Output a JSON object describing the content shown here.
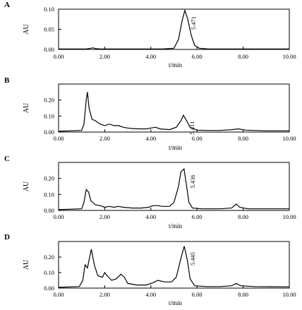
{
  "chart_data": [
    {
      "type": "line",
      "panel_label": "A",
      "xlabel": "t/min",
      "ylabel": "AU",
      "xlim": [
        0,
        10
      ],
      "ylim": [
        0,
        0.1
      ],
      "x_ticks": [
        "0.00",
        "2.00",
        "4.00",
        "6.00",
        "8.00",
        "10.00"
      ],
      "y_ticks": [
        "0.00",
        "0.05",
        "0.10"
      ],
      "series": [
        {
          "points": [
            [
              0,
              0.001
            ],
            [
              1.2,
              0.001
            ],
            [
              1.4,
              0.003
            ],
            [
              1.5,
              0.004
            ],
            [
              1.6,
              0.002
            ],
            [
              1.8,
              0.001
            ],
            [
              3.0,
              0.001
            ],
            [
              4.5,
              0.001
            ],
            [
              5.0,
              0.003
            ],
            [
              5.2,
              0.025
            ],
            [
              5.35,
              0.07
            ],
            [
              5.471,
              0.097
            ],
            [
              5.6,
              0.075
            ],
            [
              5.75,
              0.035
            ],
            [
              5.9,
              0.01
            ],
            [
              6.1,
              0.003
            ],
            [
              6.5,
              0.001
            ],
            [
              8.0,
              0.001
            ],
            [
              10.0,
              0.001
            ]
          ]
        }
      ],
      "annotations": [
        {
          "text": "5.471",
          "x": 5.471,
          "y": 0.097
        }
      ]
    },
    {
      "type": "line",
      "panel_label": "B",
      "xlabel": "t/min",
      "ylabel": "AU",
      "xlim": [
        0,
        10
      ],
      "ylim": [
        0,
        0.3
      ],
      "x_ticks": [
        "0.00",
        "2.00",
        "4.00",
        "6.00",
        "8.00",
        "10.00"
      ],
      "y_ticks": [
        "0.00",
        "0.10",
        "0.20"
      ],
      "series": [
        {
          "points": [
            [
              0,
              0.005
            ],
            [
              1.0,
              0.01
            ],
            [
              1.1,
              0.05
            ],
            [
              1.2,
              0.2
            ],
            [
              1.25,
              0.25
            ],
            [
              1.32,
              0.15
            ],
            [
              1.45,
              0.08
            ],
            [
              1.6,
              0.07
            ],
            [
              1.8,
              0.05
            ],
            [
              2.0,
              0.04
            ],
            [
              2.2,
              0.05
            ],
            [
              2.4,
              0.04
            ],
            [
              2.6,
              0.04
            ],
            [
              2.8,
              0.03
            ],
            [
              3.0,
              0.025
            ],
            [
              3.2,
              0.022
            ],
            [
              3.5,
              0.02
            ],
            [
              3.8,
              0.02
            ],
            [
              4.0,
              0.025
            ],
            [
              4.2,
              0.03
            ],
            [
              4.4,
              0.02
            ],
            [
              4.8,
              0.015
            ],
            [
              5.1,
              0.03
            ],
            [
              5.3,
              0.07
            ],
            [
              5.411,
              0.105
            ],
            [
              5.55,
              0.07
            ],
            [
              5.7,
              0.03
            ],
            [
              6.0,
              0.012
            ],
            [
              6.5,
              0.01
            ],
            [
              7.0,
              0.01
            ],
            [
              7.5,
              0.015
            ],
            [
              7.8,
              0.02
            ],
            [
              8.1,
              0.012
            ],
            [
              9.0,
              0.008
            ],
            [
              10.0,
              0.008
            ]
          ]
        }
      ],
      "annotations": [
        {
          "text": "5.411",
          "x": 5.411,
          "y": 0.105
        }
      ]
    },
    {
      "type": "line",
      "panel_label": "C",
      "xlabel": "t/min",
      "ylabel": "AU",
      "xlim": [
        0,
        10
      ],
      "ylim": [
        0,
        0.3
      ],
      "x_ticks": [
        "0.00",
        "2.00",
        "4.00",
        "6.00",
        "8.00",
        "10.00"
      ],
      "y_ticks": [
        "0.00",
        "0.10",
        "0.20"
      ],
      "series": [
        {
          "points": [
            [
              0,
              0.005
            ],
            [
              1.0,
              0.01
            ],
            [
              1.1,
              0.05
            ],
            [
              1.2,
              0.13
            ],
            [
              1.3,
              0.115
            ],
            [
              1.4,
              0.06
            ],
            [
              1.6,
              0.035
            ],
            [
              1.8,
              0.03
            ],
            [
              2.0,
              0.02
            ],
            [
              2.2,
              0.025
            ],
            [
              2.4,
              0.02
            ],
            [
              2.6,
              0.025
            ],
            [
              2.8,
              0.02
            ],
            [
              3.2,
              0.015
            ],
            [
              3.6,
              0.015
            ],
            [
              3.9,
              0.02
            ],
            [
              4.1,
              0.03
            ],
            [
              4.3,
              0.03
            ],
            [
              4.5,
              0.025
            ],
            [
              4.8,
              0.025
            ],
            [
              5.0,
              0.05
            ],
            [
              5.2,
              0.15
            ],
            [
              5.3,
              0.24
            ],
            [
              5.436,
              0.26
            ],
            [
              5.55,
              0.15
            ],
            [
              5.65,
              0.05
            ],
            [
              5.8,
              0.015
            ],
            [
              6.2,
              0.01
            ],
            [
              7.0,
              0.01
            ],
            [
              7.5,
              0.015
            ],
            [
              7.7,
              0.04
            ],
            [
              7.85,
              0.02
            ],
            [
              8.2,
              0.01
            ],
            [
              10.0,
              0.01
            ]
          ]
        }
      ],
      "annotations": [
        {
          "text": "5.436",
          "x": 5.436,
          "y": 0.26
        }
      ]
    },
    {
      "type": "line",
      "panel_label": "D",
      "xlabel": "t/min",
      "ylabel": "AU",
      "xlim": [
        0,
        10
      ],
      "ylim": [
        0,
        0.3
      ],
      "x_ticks": [
        "0.00",
        "2.00",
        "4.00",
        "6.00",
        "8.00",
        "10.00"
      ],
      "y_ticks": [
        "0.00",
        "0.10",
        "0.20"
      ],
      "series": [
        {
          "points": [
            [
              0,
              0.005
            ],
            [
              0.9,
              0.01
            ],
            [
              1.05,
              0.05
            ],
            [
              1.15,
              0.15
            ],
            [
              1.25,
              0.13
            ],
            [
              1.35,
              0.2
            ],
            [
              1.42,
              0.25
            ],
            [
              1.55,
              0.15
            ],
            [
              1.7,
              0.08
            ],
            [
              1.9,
              0.07
            ],
            [
              2.0,
              0.1
            ],
            [
              2.1,
              0.08
            ],
            [
              2.3,
              0.05
            ],
            [
              2.5,
              0.06
            ],
            [
              2.7,
              0.09
            ],
            [
              2.85,
              0.07
            ],
            [
              3.0,
              0.03
            ],
            [
              3.4,
              0.02
            ],
            [
              3.8,
              0.02
            ],
            [
              4.1,
              0.035
            ],
            [
              4.3,
              0.05
            ],
            [
              4.6,
              0.04
            ],
            [
              4.9,
              0.04
            ],
            [
              5.1,
              0.07
            ],
            [
              5.3,
              0.19
            ],
            [
              5.445,
              0.27
            ],
            [
              5.58,
              0.18
            ],
            [
              5.7,
              0.06
            ],
            [
              5.9,
              0.015
            ],
            [
              6.4,
              0.01
            ],
            [
              7.0,
              0.01
            ],
            [
              7.5,
              0.015
            ],
            [
              7.7,
              0.03
            ],
            [
              7.9,
              0.015
            ],
            [
              8.5,
              0.01
            ],
            [
              10.0,
              0.008
            ]
          ]
        }
      ],
      "annotations": [
        {
          "text": "5.445",
          "x": 5.445,
          "y": 0.27
        }
      ]
    }
  ]
}
